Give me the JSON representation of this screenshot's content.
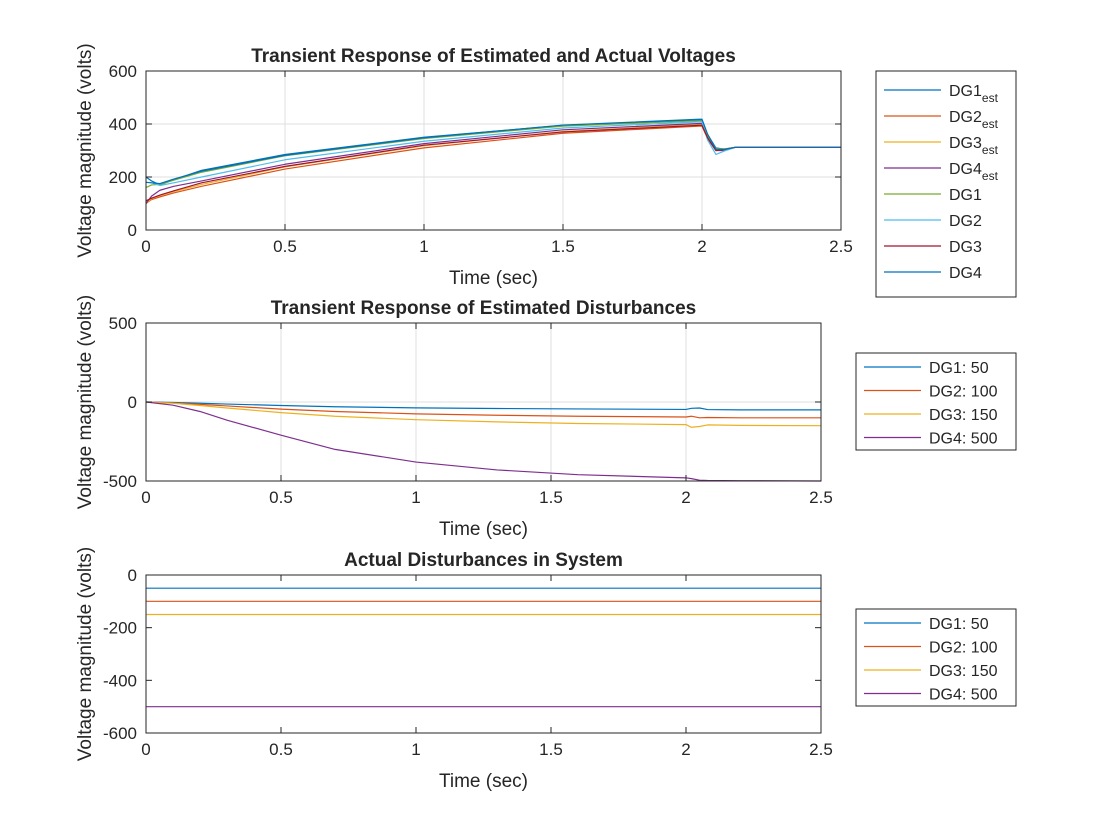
{
  "chart_data": [
    {
      "type": "line",
      "title": "Transient Response of Estimated and Actual Voltages",
      "xlabel": "Time (sec)",
      "ylabel": "Voltage magnitude (volts)",
      "xlim": [
        0,
        2.5
      ],
      "ylim": [
        0,
        600
      ],
      "xticks": [
        0,
        0.5,
        1,
        1.5,
        2,
        2.5
      ],
      "xtick_labels": [
        "0",
        "0.5",
        "1",
        "1.5",
        "2",
        "2.5"
      ],
      "yticks": [
        0,
        200,
        400,
        600
      ],
      "ytick_labels": [
        "0",
        "200",
        "400",
        "600"
      ],
      "grid": true,
      "legend_position": "outside-right",
      "x": [
        0,
        0.02,
        0.05,
        0.1,
        0.2,
        0.5,
        1.0,
        1.5,
        1.99,
        2.0,
        2.02,
        2.05,
        2.08,
        2.12,
        2.2,
        2.5
      ],
      "series": [
        {
          "name": "DG1",
          "subscript": "est",
          "color": "#0072BD",
          "values": [
            200,
            185,
            170,
            190,
            225,
            285,
            350,
            395,
            415,
            415,
            360,
            310,
            305,
            312,
            312,
            312
          ]
        },
        {
          "name": "DG2",
          "subscript": "est",
          "color": "#D95319",
          "values": [
            100,
            115,
            125,
            140,
            165,
            230,
            310,
            365,
            392,
            392,
            345,
            300,
            303,
            312,
            312,
            312
          ]
        },
        {
          "name": "DG3",
          "subscript": "est",
          "color": "#EDB120",
          "values": [
            100,
            118,
            130,
            145,
            172,
            238,
            318,
            372,
            398,
            398,
            350,
            305,
            306,
            312,
            312,
            312
          ]
        },
        {
          "name": "DG4",
          "subscript": "est",
          "color": "#7E2F8E",
          "values": [
            100,
            128,
            150,
            165,
            185,
            248,
            326,
            378,
            402,
            402,
            352,
            300,
            300,
            312,
            312,
            312
          ]
        },
        {
          "name": "DG1",
          "subscript": "",
          "color": "#77AC30",
          "values": [
            160,
            170,
            172,
            188,
            218,
            280,
            345,
            392,
            412,
            412,
            355,
            308,
            306,
            312,
            312,
            312
          ]
        },
        {
          "name": "DG2",
          "subscript": "",
          "color": "#4DBEEE",
          "values": [
            180,
            178,
            168,
            178,
            200,
            265,
            335,
            385,
            408,
            408,
            340,
            285,
            298,
            312,
            312,
            312
          ]
        },
        {
          "name": "DG3",
          "subscript": "",
          "color": "#A2142F",
          "values": [
            110,
            120,
            132,
            148,
            178,
            240,
            320,
            370,
            395,
            395,
            348,
            300,
            304,
            312,
            312,
            312
          ]
        },
        {
          "name": "DG4",
          "subscript": "",
          "color": "#0072BD",
          "values": [
            180,
            178,
            175,
            192,
            222,
            282,
            348,
            396,
            418,
            418,
            362,
            305,
            304,
            312,
            312,
            312
          ]
        }
      ]
    },
    {
      "type": "line",
      "title": "Transient Response of Estimated Disturbances",
      "xlabel": "Time (sec)",
      "ylabel": "Voltage magnitude (volts)",
      "xlim": [
        0,
        2.5
      ],
      "ylim": [
        -500,
        500
      ],
      "xticks": [
        0,
        0.5,
        1,
        1.5,
        2,
        2.5
      ],
      "xtick_labels": [
        "0",
        "0.5",
        "1",
        "1.5",
        "2",
        "2.5"
      ],
      "yticks": [
        -500,
        0,
        500
      ],
      "ytick_labels": [
        "-500",
        "0",
        "500"
      ],
      "grid": true,
      "legend_position": "outside-right",
      "x": [
        0,
        0.1,
        0.2,
        0.3,
        0.5,
        0.7,
        1.0,
        1.3,
        1.6,
        2.0,
        2.02,
        2.05,
        2.08,
        2.2,
        2.5
      ],
      "series": [
        {
          "name": "DG1: 50",
          "color": "#0072BD",
          "values": [
            0,
            -3,
            -8,
            -13,
            -22,
            -30,
            -37,
            -41,
            -44,
            -47,
            -40,
            -38,
            -48,
            -50,
            -50
          ]
        },
        {
          "name": "DG2: 100",
          "color": "#D95319",
          "values": [
            0,
            -6,
            -15,
            -25,
            -45,
            -60,
            -75,
            -84,
            -90,
            -95,
            -90,
            -100,
            -98,
            -100,
            -100
          ]
        },
        {
          "name": "DG3: 150",
          "color": "#EDB120",
          "values": [
            0,
            -8,
            -22,
            -38,
            -67,
            -90,
            -112,
            -126,
            -136,
            -143,
            -160,
            -155,
            -145,
            -148,
            -150
          ]
        },
        {
          "name": "DG4: 500",
          "color": "#7E2F8E",
          "values": [
            0,
            -20,
            -60,
            -115,
            -210,
            -300,
            -380,
            -430,
            -460,
            -480,
            -485,
            -495,
            -497,
            -498,
            -500
          ]
        }
      ]
    },
    {
      "type": "line",
      "title": "Actual Disturbances in System",
      "xlabel": "Time (sec)",
      "ylabel": "Voltage magnitude (volts)",
      "xlim": [
        0,
        2.5
      ],
      "ylim": [
        -600,
        0
      ],
      "xticks": [
        0,
        0.5,
        1,
        1.5,
        2,
        2.5
      ],
      "xtick_labels": [
        "0",
        "0.5",
        "1",
        "1.5",
        "2",
        "2.5"
      ],
      "yticks": [
        -600,
        -400,
        -200,
        0
      ],
      "ytick_labels": [
        "-600",
        "-400",
        "-200",
        "0"
      ],
      "grid": false,
      "legend_position": "outside-right",
      "x": [
        0,
        2.5
      ],
      "series": [
        {
          "name": "DG1: 50",
          "color": "#0072BD",
          "values": [
            -50,
            -50
          ]
        },
        {
          "name": "DG2: 100",
          "color": "#D95319",
          "values": [
            -100,
            -100
          ]
        },
        {
          "name": "DG3: 150",
          "color": "#EDB120",
          "values": [
            -150,
            -150
          ]
        },
        {
          "name": "DG4: 500",
          "color": "#7E2F8E",
          "values": [
            -500,
            -500
          ]
        }
      ]
    }
  ]
}
